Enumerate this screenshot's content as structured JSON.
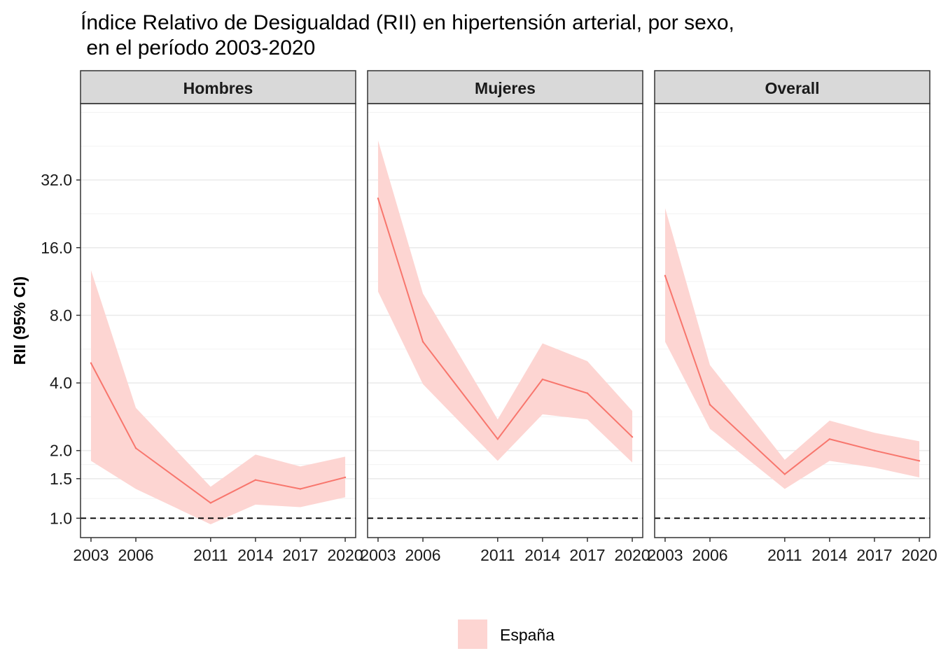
{
  "chart_data": {
    "type": "line",
    "title": "Índice Relativo de Desigualdad (RII) en hipertensión arterial, por sexo,",
    "subtitle": " en el período 2003-2020",
    "xlabel": "",
    "ylabel": "RII (95% CI)",
    "y_scale": "log2",
    "yticks": [
      1.0,
      1.5,
      2.0,
      4.0,
      8.0,
      16.0,
      32.0
    ],
    "ytick_labels": [
      "1.0",
      "1.5",
      "2.0",
      "4.0",
      "8.0",
      "16.0",
      "32.0"
    ],
    "ylim": [
      0.82,
      70
    ],
    "x": [
      2003,
      2006,
      2011,
      2014,
      2017,
      2020
    ],
    "xtick_labels": [
      "2003",
      "2006",
      "2011",
      "2014",
      "2017",
      "2020"
    ],
    "xlim": [
      2002.3,
      2020.7
    ],
    "reference_line": 1.0,
    "reference_line_style": "dashed",
    "grid": true,
    "legend_position": "bottom",
    "colors": {
      "line": "#F8766D",
      "band": "#FDD5D2",
      "strip": "#D9D9D9",
      "grid": "#EBEBEB"
    },
    "panels": [
      {
        "name": "Hombres",
        "series": [
          {
            "name": "España",
            "values": [
              4.9,
              2.05,
              1.17,
              1.48,
              1.35,
              1.52
            ],
            "lower": [
              1.8,
              1.35,
              0.94,
              1.15,
              1.12,
              1.24
            ],
            "upper": [
              12.7,
              3.1,
              1.38,
              1.92,
              1.7,
              1.88
            ]
          }
        ]
      },
      {
        "name": "Mujeres",
        "series": [
          {
            "name": "España",
            "values": [
              26.5,
              6.1,
              2.25,
              4.15,
              3.6,
              2.3
            ],
            "lower": [
              10.2,
              3.95,
              1.8,
              2.9,
              2.75,
              1.77
            ],
            "upper": [
              48.0,
              10.0,
              2.75,
              6.0,
              5.0,
              3.0
            ]
          }
        ]
      },
      {
        "name": "Overall",
        "series": [
          {
            "name": "España",
            "values": [
              12.0,
              3.2,
              1.57,
              2.25,
              2.0,
              1.8
            ],
            "lower": [
              6.1,
              2.5,
              1.35,
              1.8,
              1.68,
              1.52
            ],
            "upper": [
              24.0,
              4.8,
              1.82,
              2.72,
              2.4,
              2.2
            ]
          }
        ]
      }
    ],
    "legend": [
      {
        "label": "España",
        "color": "#FDD5D2"
      }
    ]
  }
}
